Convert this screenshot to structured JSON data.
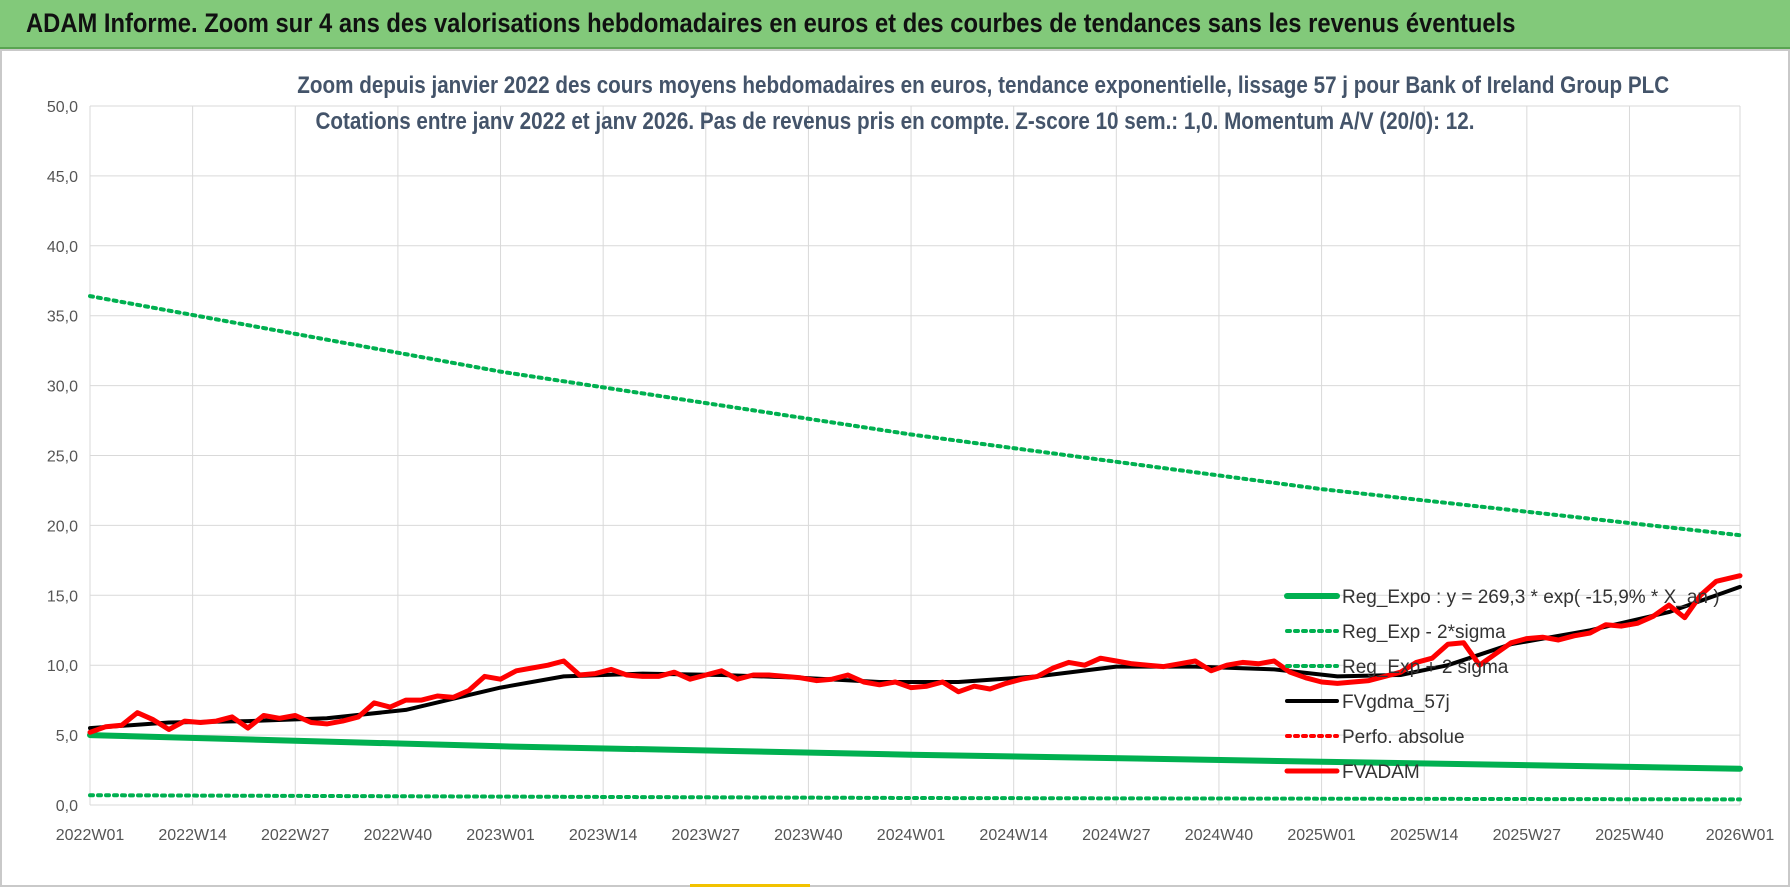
{
  "banner": {
    "title": "ADAM Informe. Zoom sur 4 ans des valorisations hebdomadaires en euros et des courbes de tendances sans les revenus éventuels"
  },
  "colors": {
    "banner": "#82c97a",
    "green": "#00b050",
    "black": "#000000",
    "red": "#ff0000",
    "title": "#44546a",
    "grid": "#d9d9d9"
  },
  "chart_data": {
    "type": "line",
    "title": "Zoom depuis janvier 2022 des cours moyens hebdomadaires en euros, tendance exponentielle, lissage 57 j pour Bank of Ireland Group PLC",
    "subtitle": "Cotations entre janv 2022 et janv 2026. Pas de revenus pris en compte. Z-score 10 sem.: 1,0. Momentum A/V (20/0): 12.",
    "xlabel": "",
    "ylabel": "",
    "ylim": [
      0,
      50
    ],
    "yticks": [
      "0,0",
      "5,0",
      "10,0",
      "15,0",
      "20,0",
      "25,0",
      "30,0",
      "35,0",
      "40,0",
      "45,0",
      "50,0"
    ],
    "xlim": [
      0,
      209
    ],
    "xtick_positions": [
      0,
      13,
      26,
      39,
      52,
      65,
      78,
      91,
      104,
      117,
      130,
      143,
      156,
      169,
      182,
      195,
      209
    ],
    "xticks": [
      "2022W01",
      "2022W14",
      "2022W27",
      "2022W40",
      "2023W01",
      "2023W14",
      "2023W27",
      "2023W40",
      "2024W01",
      "2024W14",
      "2024W27",
      "2024W40",
      "2025W01",
      "2025W14",
      "2025W27",
      "2025W40",
      "2026W01"
    ],
    "grid": true,
    "legend_position": "bottom-right",
    "series": [
      {
        "name": "Reg_Expo : y = 269,3 * exp( -15,9% * X_an )",
        "style": "solid",
        "color": "#00b050",
        "x": [
          0,
          52,
          104,
          156,
          209
        ],
        "y": [
          5.0,
          4.2,
          3.6,
          3.1,
          2.6
        ]
      },
      {
        "name": "Reg_Exp - 2*sigma",
        "style": "dotted",
        "color": "#00b050",
        "x": [
          0,
          52,
          104,
          156,
          209
        ],
        "y": [
          0.7,
          0.6,
          0.5,
          0.45,
          0.4
        ]
      },
      {
        "name": "Reg_Exp + 2 sigma",
        "style": "dotted",
        "color": "#00b050",
        "x": [
          0,
          52,
          104,
          156,
          209
        ],
        "y": [
          36.4,
          31.0,
          26.5,
          22.6,
          19.3
        ]
      },
      {
        "name": "FVgdma_57j",
        "style": "solid",
        "color": "#000000",
        "x": [
          0,
          10,
          20,
          30,
          40,
          52,
          60,
          70,
          80,
          90,
          100,
          110,
          120,
          130,
          140,
          150,
          158,
          166,
          172,
          180,
          190,
          200,
          209
        ],
        "y": [
          5.5,
          5.9,
          6.0,
          6.2,
          6.8,
          8.4,
          9.2,
          9.4,
          9.3,
          9.1,
          8.8,
          8.8,
          9.2,
          9.9,
          9.9,
          9.7,
          9.2,
          9.3,
          10.0,
          11.5,
          12.5,
          13.8,
          15.6
        ]
      },
      {
        "name": "Perfo. absolue",
        "style": "dotted",
        "color": "#ff0000",
        "x": [],
        "y": []
      },
      {
        "name": "FVADAM",
        "style": "solid-thick",
        "color": "#ff0000",
        "x": [
          0,
          2,
          4,
          6,
          8,
          10,
          12,
          14,
          16,
          18,
          20,
          22,
          24,
          26,
          28,
          30,
          32,
          34,
          36,
          38,
          40,
          42,
          44,
          46,
          48,
          50,
          52,
          54,
          56,
          58,
          60,
          62,
          64,
          66,
          68,
          70,
          72,
          74,
          76,
          78,
          80,
          82,
          84,
          86,
          88,
          90,
          92,
          94,
          96,
          98,
          100,
          102,
          104,
          106,
          108,
          110,
          112,
          114,
          116,
          118,
          120,
          122,
          124,
          126,
          128,
          130,
          132,
          134,
          136,
          138,
          140,
          142,
          144,
          146,
          148,
          150,
          152,
          154,
          156,
          158,
          160,
          162,
          164,
          166,
          168,
          170,
          172,
          174,
          176,
          178,
          180,
          182,
          184,
          186,
          188,
          190,
          192,
          194,
          196,
          198,
          200,
          202,
          204,
          206,
          209
        ],
        "y": [
          5.2,
          5.6,
          5.7,
          6.6,
          6.1,
          5.4,
          6.0,
          5.9,
          6.0,
          6.3,
          5.5,
          6.4,
          6.2,
          6.4,
          5.9,
          5.8,
          6.0,
          6.3,
          7.3,
          7.0,
          7.5,
          7.5,
          7.8,
          7.7,
          8.2,
          9.2,
          9.0,
          9.6,
          9.8,
          10.0,
          10.3,
          9.3,
          9.4,
          9.7,
          9.3,
          9.2,
          9.2,
          9.5,
          9.0,
          9.3,
          9.6,
          9.0,
          9.3,
          9.3,
          9.2,
          9.1,
          8.9,
          9.0,
          9.3,
          8.8,
          8.6,
          8.8,
          8.4,
          8.5,
          8.8,
          8.1,
          8.5,
          8.3,
          8.7,
          9.0,
          9.2,
          9.8,
          10.2,
          10.0,
          10.5,
          10.3,
          10.1,
          10.0,
          9.9,
          10.1,
          10.3,
          9.6,
          10.0,
          10.2,
          10.1,
          10.3,
          9.5,
          9.1,
          8.8,
          8.7,
          8.8,
          8.9,
          9.2,
          9.5,
          10.2,
          10.5,
          11.5,
          11.6,
          10.0,
          10.8,
          11.6,
          11.9,
          12.0,
          11.8,
          12.1,
          12.3,
          12.9,
          12.8,
          13.0,
          13.5,
          14.3,
          13.4,
          15.0,
          16.0,
          16.4
        ]
      }
    ]
  }
}
